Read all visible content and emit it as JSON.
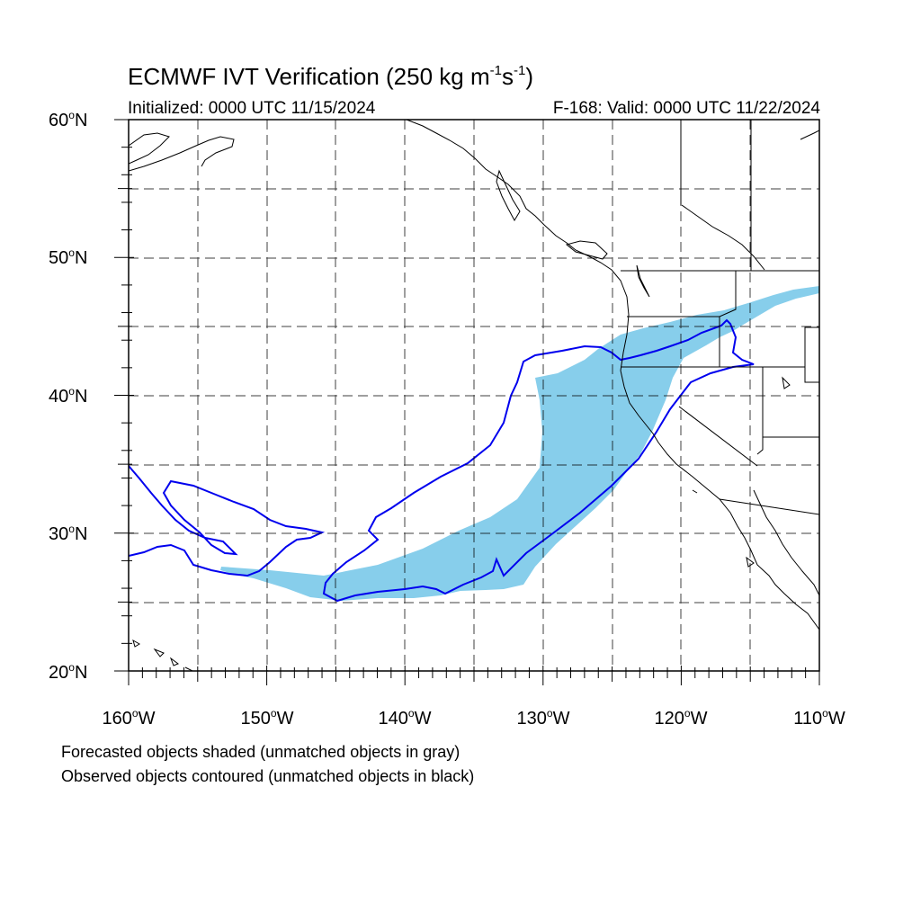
{
  "title": {
    "prefix": "ECMWF IVT Verification (250 kg m",
    "exp1": "-1",
    "mid": "s",
    "exp2": "-1",
    "suffix": ")"
  },
  "initialized": "Initialized: 0000 UTC 11/15/2024",
  "valid": "F-168: Valid: 0000 UTC 11/22/2024",
  "lat_labels": [
    {
      "num": "60",
      "deg": "o",
      "hemi": "N"
    },
    {
      "num": "50",
      "deg": "o",
      "hemi": "N"
    },
    {
      "num": "40",
      "deg": "o",
      "hemi": "N"
    },
    {
      "num": "30",
      "deg": "o",
      "hemi": "N"
    },
    {
      "num": "20",
      "deg": "o",
      "hemi": "N"
    }
  ],
  "lon_labels": [
    {
      "num": "160",
      "deg": "o",
      "hemi": "W"
    },
    {
      "num": "150",
      "deg": "o",
      "hemi": "W"
    },
    {
      "num": "140",
      "deg": "o",
      "hemi": "W"
    },
    {
      "num": "130",
      "deg": "o",
      "hemi": "W"
    },
    {
      "num": "120",
      "deg": "o",
      "hemi": "W"
    },
    {
      "num": "110",
      "deg": "o",
      "hemi": "W"
    }
  ],
  "notes": {
    "forecast": "Forecasted objects shaded (unmatched objects in gray)",
    "observed": "Observed objects contoured (unmatched objects in black)"
  },
  "colors": {
    "forecast_fill": "#87ceeb",
    "observed_contour": "#0000ee",
    "grid": "#000000",
    "coast": "#000000"
  }
}
